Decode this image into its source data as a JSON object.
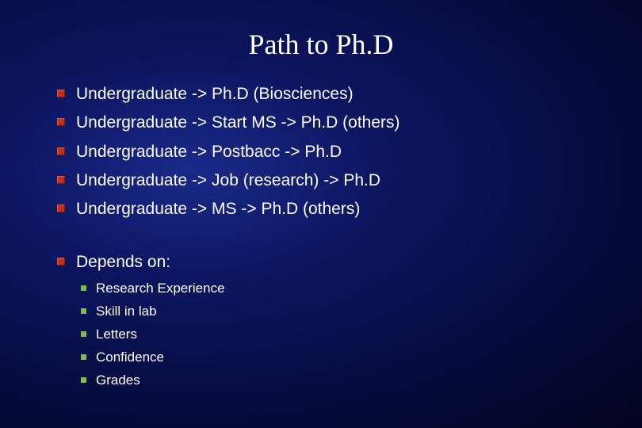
{
  "slide": {
    "title": "Path to Ph.D",
    "bullets_level1": [
      "Undergraduate -> Ph.D (Biosciences)",
      "Undergraduate -> Start MS -> Ph.D (others)",
      "Undergraduate -> Postbacc -> Ph.D",
      "Undergraduate -> Job (research) -> Ph.D",
      "Undergraduate -> MS -> Ph.D (others)"
    ],
    "bullets_section2_header": "Depends on:",
    "bullets_level2": [
      "Research Experience",
      "Skill in lab",
      "Letters",
      "Confidence",
      "Grades"
    ],
    "style": {
      "background_gradient": [
        "#1a2a8a",
        "#0d1560",
        "#050a3a",
        "#020520"
      ],
      "title_color": "#ffffff",
      "title_fontsize": 36,
      "body_color": "#ffffff",
      "body_fontsize_l1": 21,
      "body_fontsize_l2": 17,
      "bullet_l1_color": "#c43018",
      "bullet_l1_size": 10,
      "bullet_l2_color": "#7db85a",
      "bullet_l2_size": 7,
      "font_family_title": "Times New Roman",
      "font_family_body": "Arial"
    }
  }
}
